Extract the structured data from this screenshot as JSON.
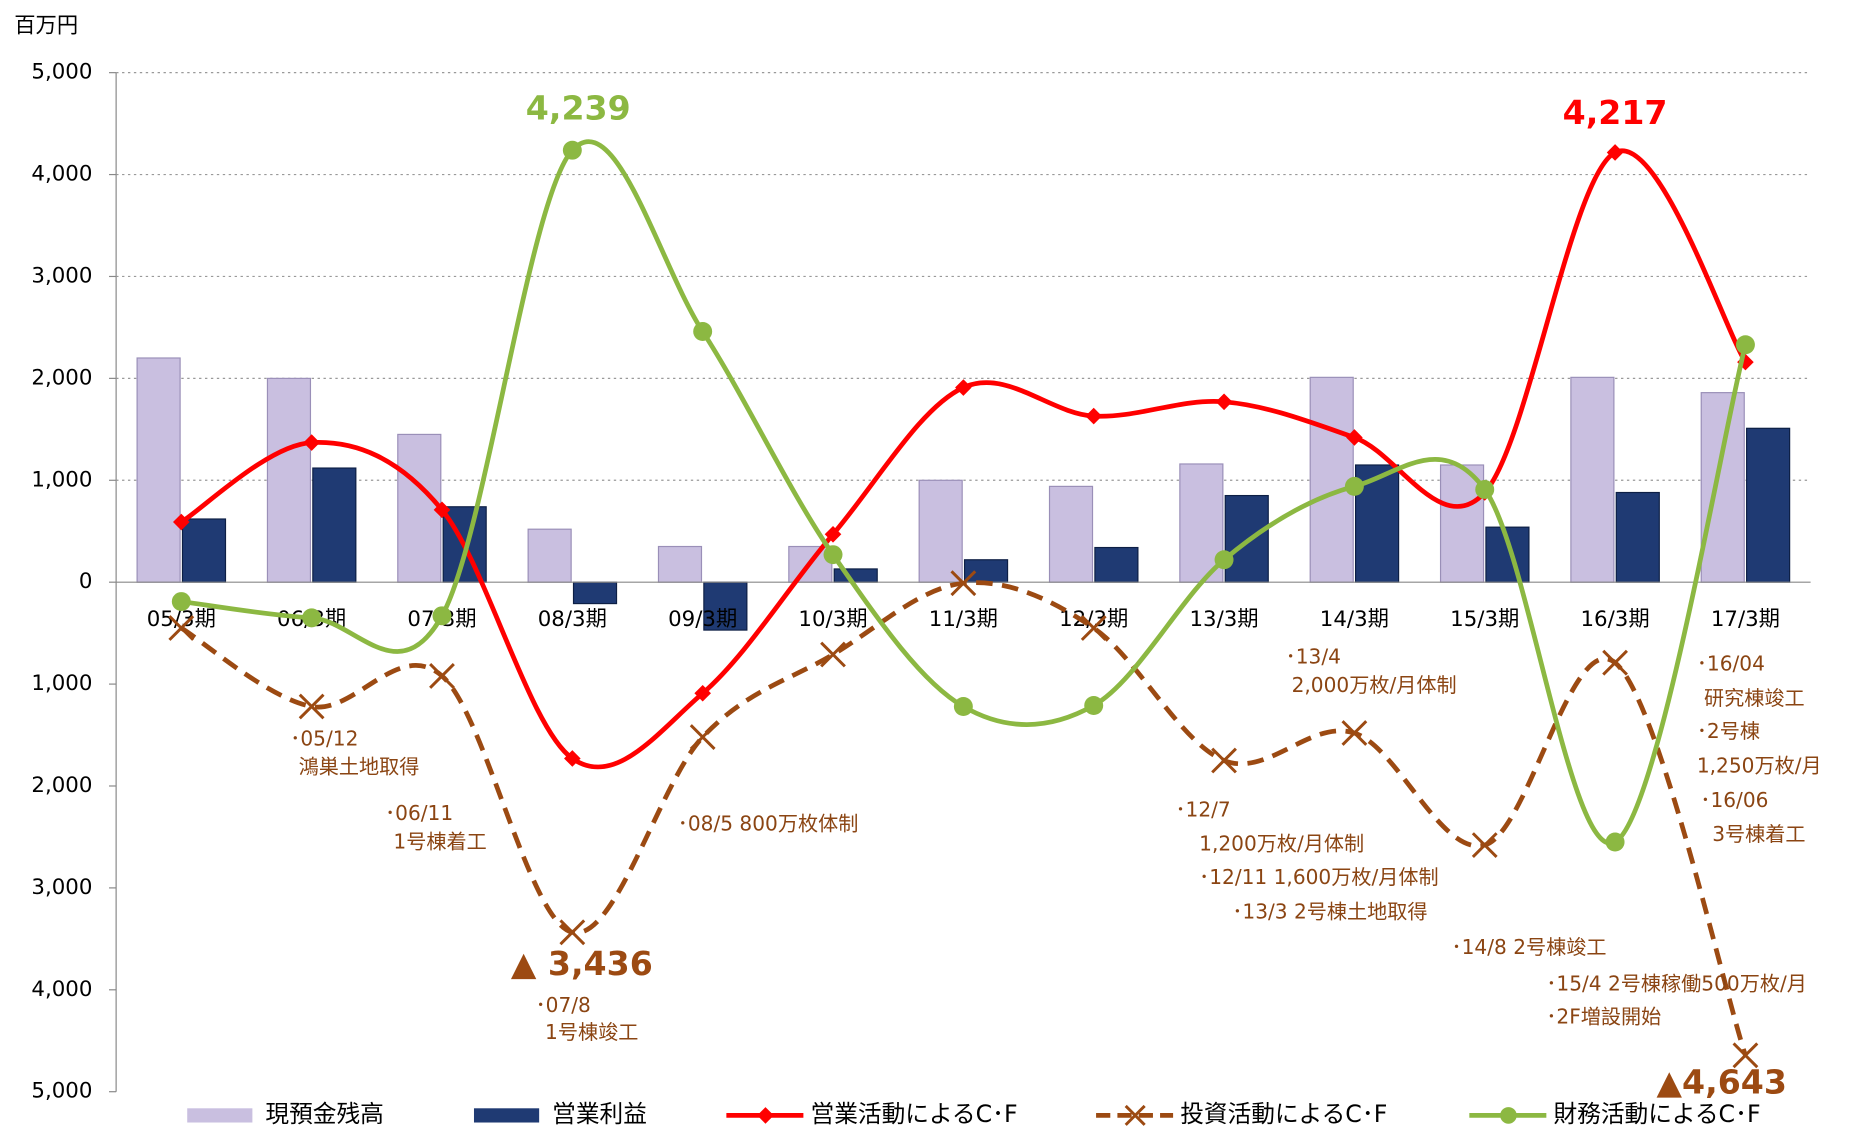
{
  "chart_data": {
    "type": "bar_line",
    "y_unit": "百万円",
    "categories": [
      "05/3期",
      "06/3期",
      "07/3期",
      "08/3期",
      "09/3期",
      "10/3期",
      "11/3期",
      "12/3期",
      "13/3期",
      "14/3期",
      "15/3期",
      "16/3期",
      "17/3期"
    ],
    "ylim": [
      -5000,
      5000
    ],
    "yticks": [
      {
        "value": -5000,
        "label": "5,000"
      },
      {
        "value": -4000,
        "label": "4,000"
      },
      {
        "value": -3000,
        "label": "3,000"
      },
      {
        "value": -2000,
        "label": "2,000"
      },
      {
        "value": -1000,
        "label": "1,000"
      },
      0,
      {
        "value": 1000,
        "label": "1,000"
      },
      {
        "value": 2000,
        "label": "2,000"
      },
      {
        "value": 3000,
        "label": "3,000"
      },
      {
        "value": 4000,
        "label": "4,000"
      },
      {
        "value": 5000,
        "label": "5,000"
      }
    ],
    "series": [
      {
        "name": "現預金残高",
        "kind": "bar",
        "color": "#c9bfe0",
        "values": [
          2200,
          2000,
          1450,
          520,
          350,
          350,
          1000,
          940,
          1160,
          2010,
          1150,
          2010,
          1860
        ]
      },
      {
        "name": "営業利益",
        "kind": "bar",
        "color": "#1f3a73",
        "values": [
          620,
          1120,
          740,
          -210,
          -470,
          130,
          220,
          340,
          850,
          1150,
          540,
          880,
          1510
        ]
      },
      {
        "name": "営業活動によるC･F",
        "kind": "line",
        "color": "#ff0000",
        "marker": "diamond",
        "values": [
          590,
          1370,
          710,
          -1730,
          -1090,
          470,
          1910,
          1630,
          1770,
          1420,
          880,
          4217,
          2160
        ],
        "value_labels": [
          null,
          null,
          null,
          null,
          null,
          null,
          null,
          null,
          null,
          null,
          null,
          "4,217",
          null
        ]
      },
      {
        "name": "投資活動によるC･F",
        "kind": "line",
        "color": "#9c4a12",
        "dashed": true,
        "marker": "x",
        "values": [
          -450,
          -1220,
          -920,
          -3436,
          -1520,
          -710,
          -10,
          -450,
          -1750,
          -1480,
          -2580,
          -790,
          -4643
        ],
        "value_labels": [
          null,
          null,
          null,
          "▲ 3,436",
          null,
          null,
          null,
          null,
          null,
          null,
          null,
          null,
          "▲4,643"
        ]
      },
      {
        "name": "財務活動によるC･F",
        "kind": "line",
        "color": "#8cb842",
        "marker": "circle",
        "values": [
          -190,
          -350,
          -330,
          4239,
          2460,
          270,
          -1220,
          -1210,
          220,
          940,
          910,
          -2550,
          2330
        ],
        "value_labels": [
          null,
          null,
          null,
          "4,239",
          null,
          null,
          null,
          null,
          null,
          null,
          null,
          null,
          null
        ]
      }
    ],
    "annotations": [
      "･05/12",
      "鴻巣土地取得",
      "･06/11",
      "1号棟着工",
      "･07/8",
      "1号棟竣工",
      "･08/5 800万枚体制",
      "･12/7",
      "1,200万枚/月体制",
      "･12/11  1,600万枚/月体制",
      "･13/3  2号棟土地取得",
      "･13/4",
      "2,000万枚/月体制",
      "･14/8 2号棟竣工",
      "･15/4 2号棟稼働500万枚/月",
      "･2F増設開始",
      "･16/04",
      "研究棟竣工",
      "･2号棟",
      "1,250万枚/月",
      "･16/06",
      "3号棟着工"
    ]
  }
}
